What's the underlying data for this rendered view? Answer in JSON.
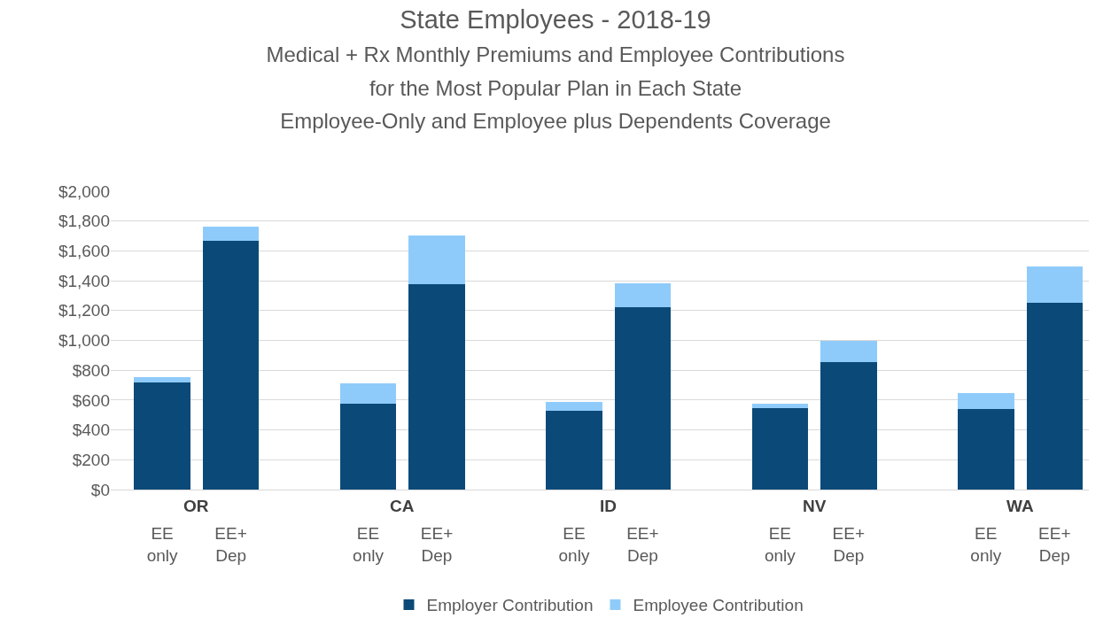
{
  "chart_data": {
    "type": "bar",
    "title": "State Employees - 2018-19",
    "subtitle": "Medical + Rx Monthly Premiums and Employee Contributions\nfor the Most Popular Plan in Each State\nEmployee-Only and Employee plus Dependents Coverage",
    "categories": [
      "EE only",
      "EE+ Dep",
      "EE only",
      "EE+ Dep",
      "EE only",
      "EE+ Dep",
      "EE only",
      "EE+ Dep",
      "EE only",
      "EE+ Dep"
    ],
    "annotations": [
      "OR",
      "CA",
      "ID",
      "NV",
      "WA"
    ],
    "stacked": true,
    "series": [
      {
        "name": "Employer Contribution",
        "color": "#0b4a78",
        "values": [
          720,
          1670,
          575,
          1375,
          530,
          1220,
          545,
          855,
          540,
          1250
        ]
      },
      {
        "name": "Employee Contribution",
        "color": "#8fcbfa",
        "values": [
          35,
          90,
          140,
          330,
          60,
          160,
          30,
          145,
          105,
          245
        ]
      }
    ],
    "ylim": [
      0,
      2000
    ],
    "yticks": [
      {
        "value": 0,
        "label": "$0"
      },
      {
        "value": 200,
        "label": "$200"
      },
      {
        "value": 400,
        "label": "$400"
      },
      {
        "value": 600,
        "label": "$600"
      },
      {
        "value": 800,
        "label": "$800"
      },
      {
        "value": 1000,
        "label": "$1,000"
      },
      {
        "value": 1200,
        "label": "$1,200"
      },
      {
        "value": 1400,
        "label": "$1,400"
      },
      {
        "value": 1600,
        "label": "$1,600"
      },
      {
        "value": 1800,
        "label": "$1,800"
      },
      {
        "value": 2000,
        "label": "$2,000"
      }
    ],
    "grid": "y",
    "legend": "bottom"
  }
}
